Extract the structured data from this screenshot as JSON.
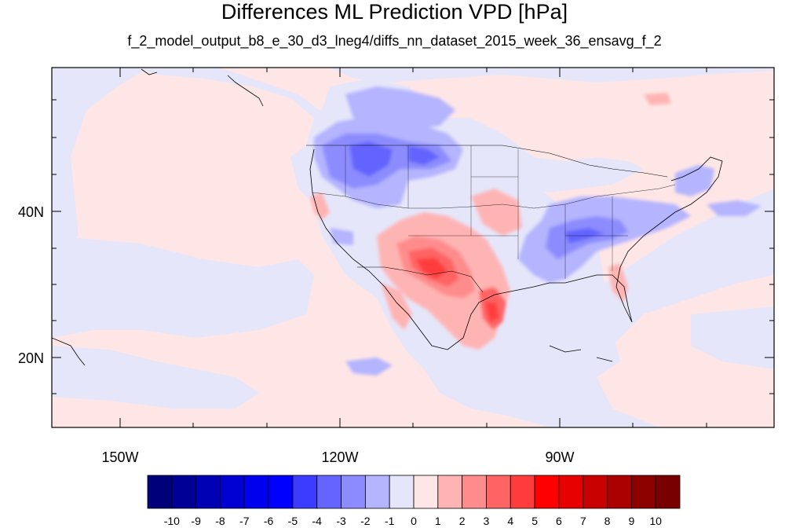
{
  "title": "Differences ML Prediction VPD [hPa]",
  "subtitle": "f_2_model_output_b8_e_30_d3_lneg4/diffs_nn_dataset_2015_week_36_ensavg_f_2",
  "map": {
    "projection": "cylindrical-equidistant",
    "lon_range": [
      -159.5,
      -61
    ],
    "lat_range": [
      11,
      60
    ],
    "lat_ticks": [
      {
        "value": 40,
        "label": "40N"
      },
      {
        "value": 20,
        "label": "20N"
      }
    ],
    "lon_ticks": [
      {
        "value": -150,
        "label": "150W"
      },
      {
        "value": -120,
        "label": "120W"
      },
      {
        "value": -90,
        "label": "90W"
      }
    ],
    "background_field_color": "#e6e6fa"
  },
  "colorbar": {
    "levels": [
      "-10",
      "-9",
      "-8",
      "-7",
      "-6",
      "-5",
      "-4",
      "-3",
      "-2",
      "-1",
      "0",
      "1",
      "2",
      "3",
      "4",
      "5",
      "6",
      "7",
      "8",
      "9",
      "10"
    ],
    "colors": [
      "#00007a",
      "#000096",
      "#0000b4",
      "#0000d2",
      "#0000ee",
      "#0000ff",
      "#3c3cff",
      "#6464ff",
      "#8c8cff",
      "#b4b4ff",
      "#e6e6fa",
      "#ffe6e6",
      "#ffb4b4",
      "#ff8c8c",
      "#ff6464",
      "#ff3c3c",
      "#ff0000",
      "#e60000",
      "#c80000",
      "#aa0000",
      "#8c0000",
      "#780000"
    ]
  }
}
